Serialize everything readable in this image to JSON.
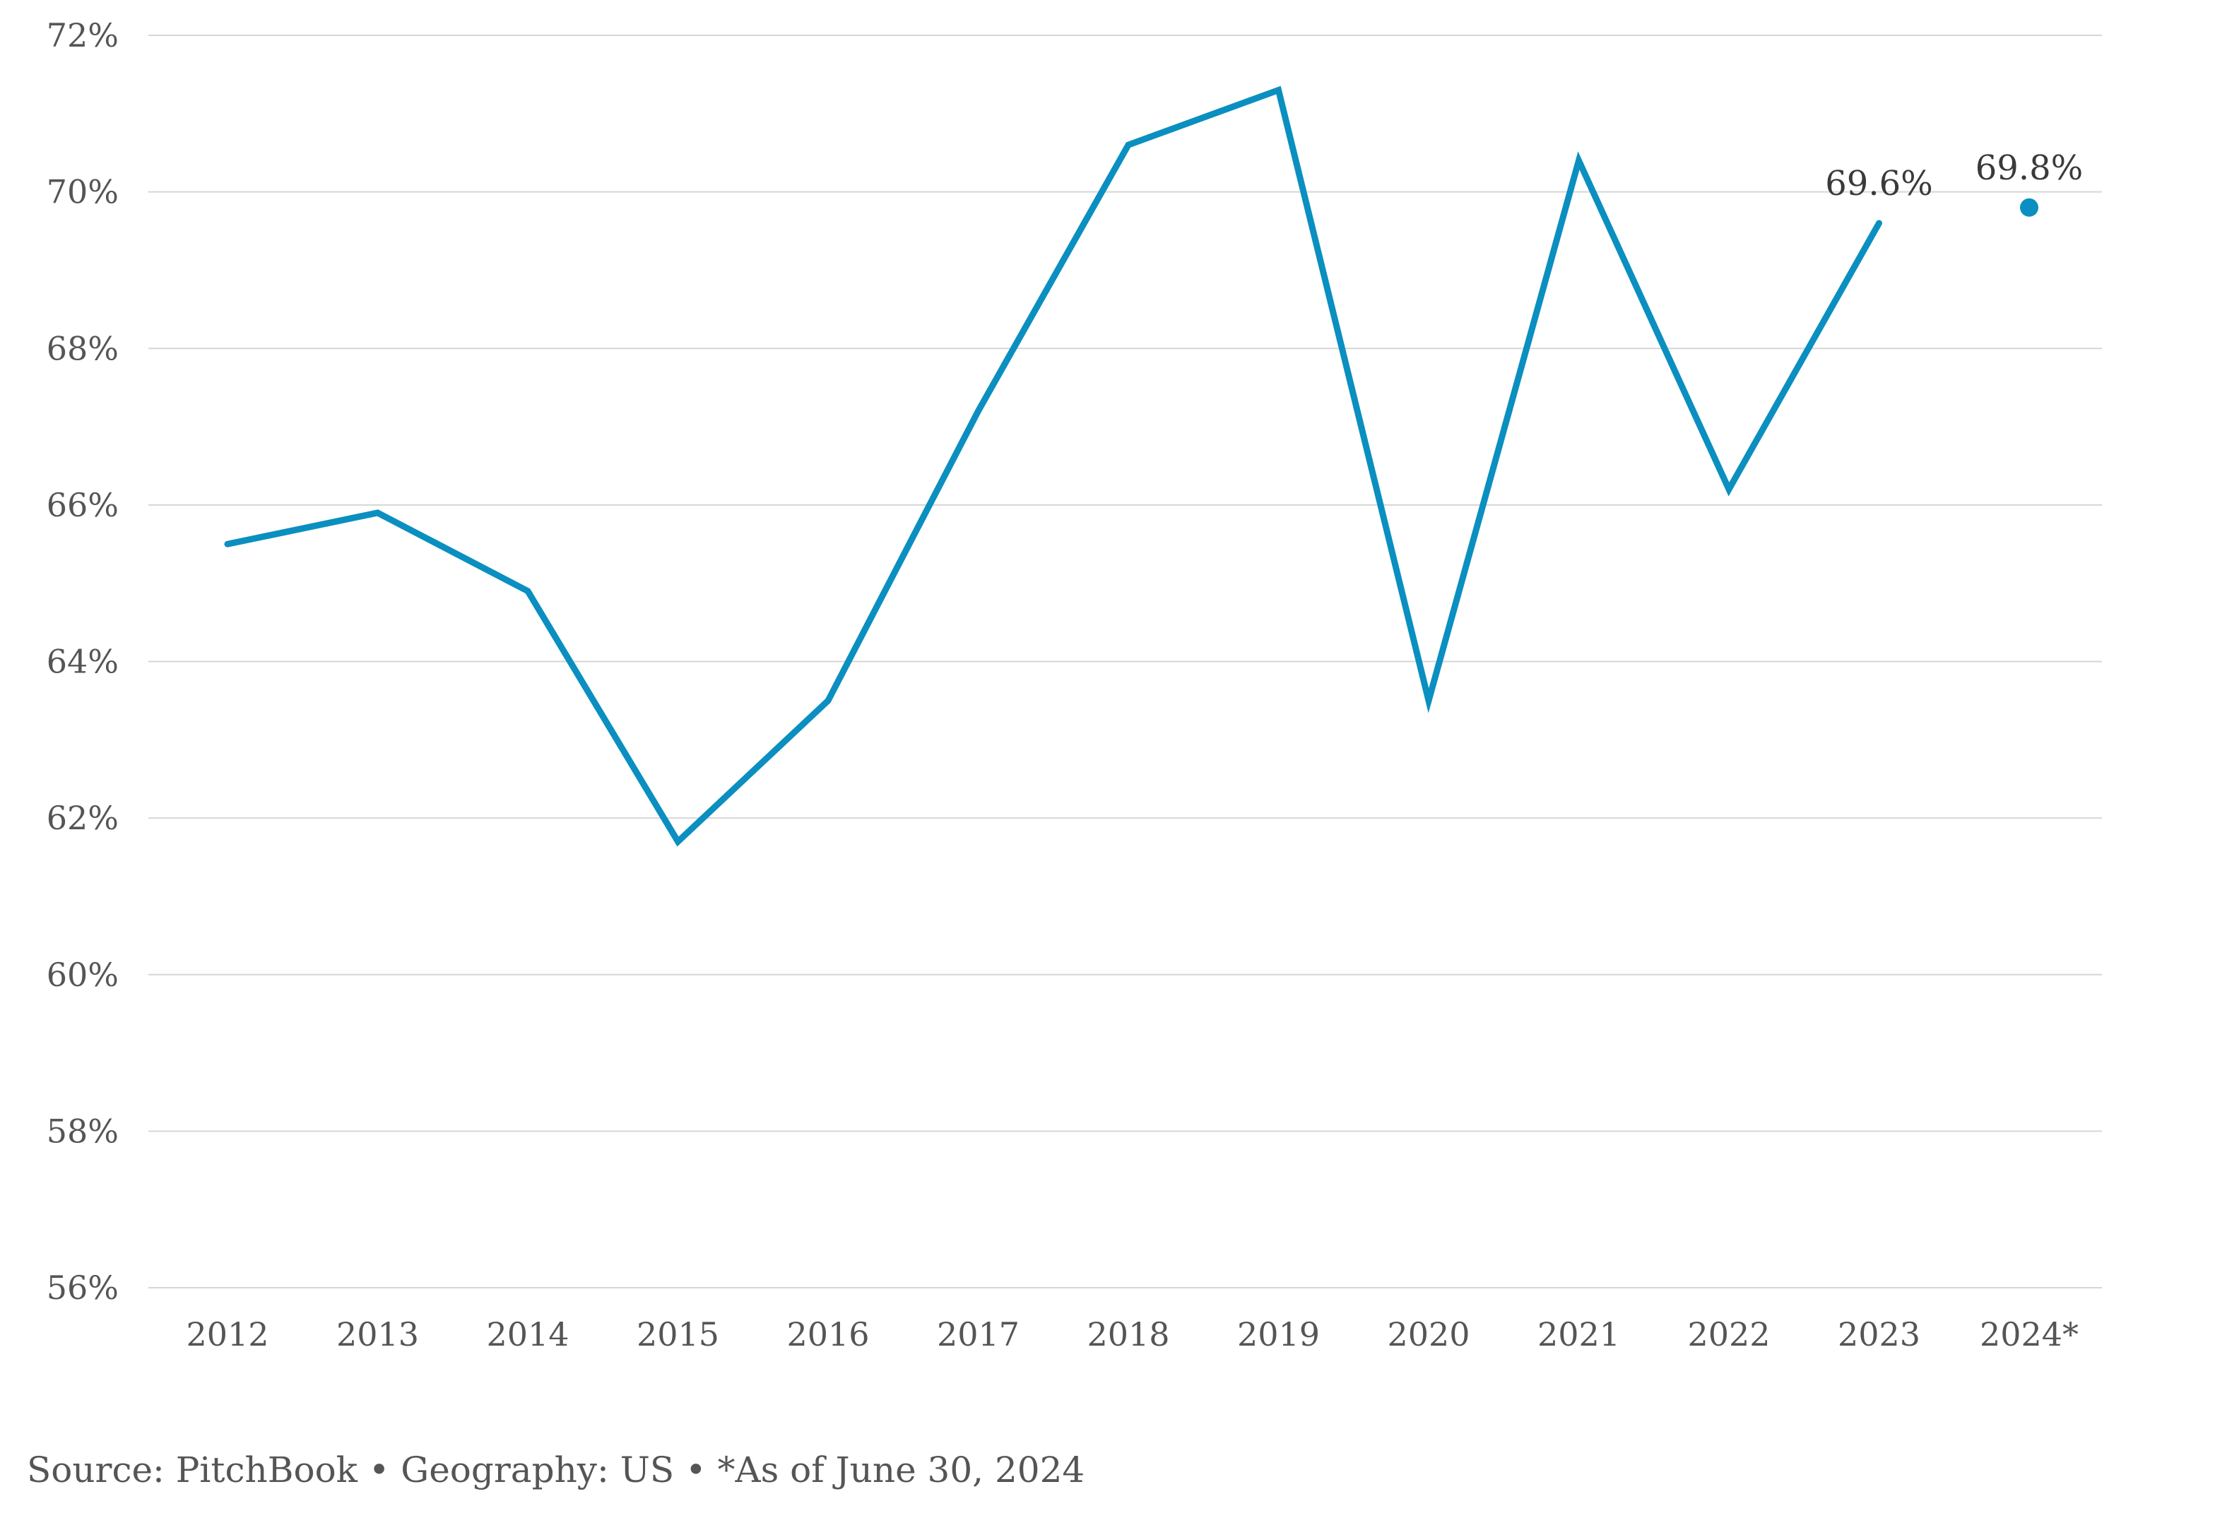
{
  "chart_data": {
    "type": "line",
    "title": "",
    "xlabel": "",
    "ylabel": "",
    "categories": [
      "2012",
      "2013",
      "2014",
      "2015",
      "2016",
      "2017",
      "2018",
      "2019",
      "2020",
      "2021",
      "2022",
      "2023",
      "2024*"
    ],
    "series": [
      {
        "values": [
          65.5,
          65.9,
          64.9,
          61.7,
          63.5,
          67.2,
          70.6,
          71.3,
          63.5,
          70.4,
          66.2,
          69.6,
          69.8
        ],
        "color": "#0a8fc0",
        "line_until_index": 11,
        "point_at_index": 12
      }
    ],
    "ylim": [
      56,
      72
    ],
    "yticks": [
      56,
      58,
      60,
      62,
      64,
      66,
      68,
      70,
      72
    ],
    "ytick_labels": [
      "56%",
      "58%",
      "60%",
      "62%",
      "64%",
      "66%",
      "68%",
      "70%",
      "72%"
    ],
    "data_labels": [
      {
        "index": 11,
        "text": "69.6%"
      },
      {
        "index": 12,
        "text": "69.8%"
      }
    ],
    "grid": "horizontal",
    "legend": "none"
  },
  "footer": {
    "source": "Source: PitchBook • Geography: US • *As of June 30, 2024"
  }
}
